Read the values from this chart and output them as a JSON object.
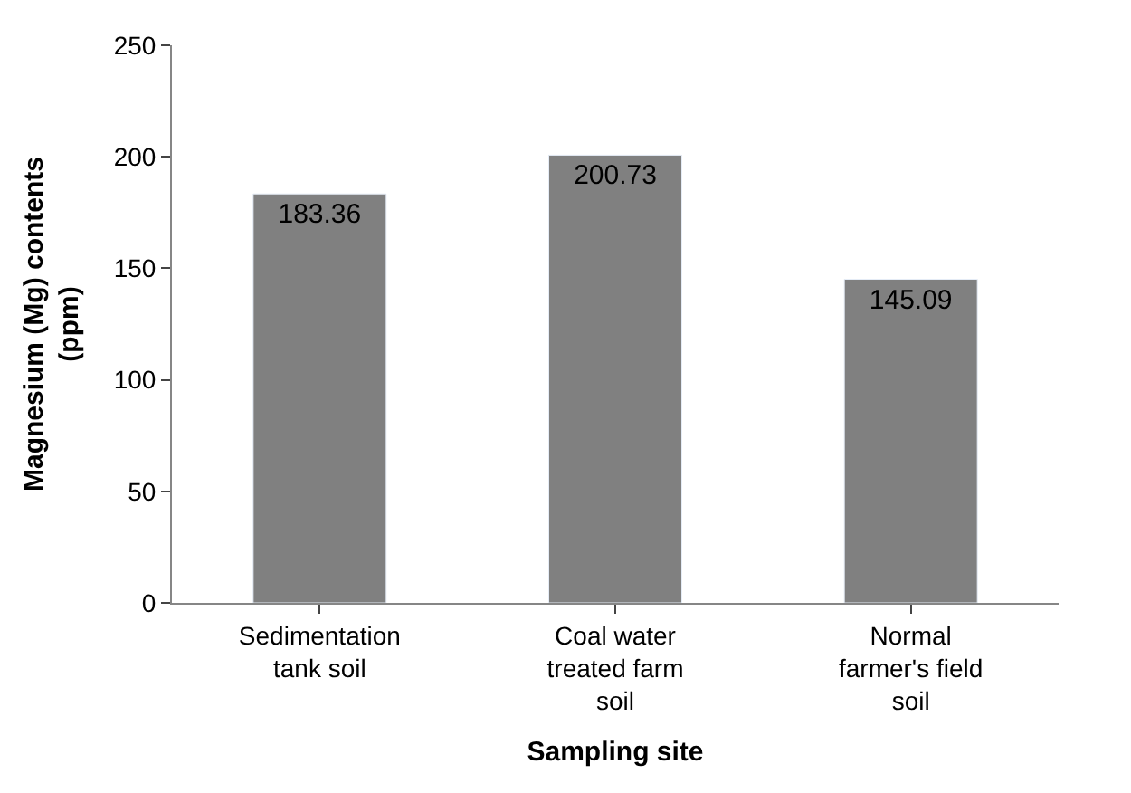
{
  "chart_data": {
    "type": "bar",
    "xlabel": "Sampling site",
    "ylabel": "Magnesium (Mg) contents (ppm)",
    "categories": [
      "Sedimentation tank soil",
      "Coal water treated farm soil",
      "Normal farmer's field soil"
    ],
    "values": [
      183.36,
      200.73,
      145.09
    ],
    "color": "#808080",
    "ylim": [
      0,
      250
    ],
    "yticks": [
      0,
      50,
      100,
      150,
      200,
      250
    ],
    "data_labels": true
  }
}
